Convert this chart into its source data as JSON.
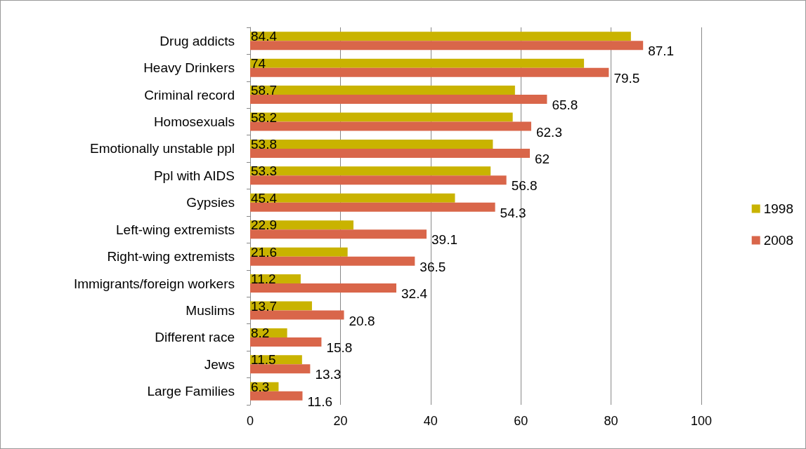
{
  "chart_data": {
    "type": "bar",
    "orientation": "horizontal",
    "categories": [
      "Drug addicts",
      "Heavy Drinkers",
      "Criminal record",
      "Homosexuals",
      "Emotionally unstable ppl",
      "Ppl with AIDS",
      "Gypsies",
      "Left-wing extremists",
      "Right-wing extremists",
      "Immigrants/foreign workers",
      "Muslims",
      "Different race",
      "Jews",
      "Large Families"
    ],
    "series": [
      {
        "name": "1998",
        "color": "#c9b300",
        "values": [
          84.4,
          74,
          58.7,
          58.2,
          53.8,
          53.3,
          45.4,
          22.9,
          21.6,
          11.2,
          13.7,
          8.2,
          11.5,
          6.3
        ]
      },
      {
        "name": "2008",
        "color": "#d9664a",
        "values": [
          87.1,
          79.5,
          65.8,
          62.3,
          62,
          56.8,
          54.3,
          39.1,
          36.5,
          32.4,
          20.8,
          15.8,
          13.3,
          11.6
        ]
      }
    ],
    "xlim": [
      0,
      100
    ],
    "xticks": [
      0,
      20,
      40,
      60,
      80,
      100
    ],
    "grid": "x",
    "legend": "right",
    "data_labels": true
  }
}
